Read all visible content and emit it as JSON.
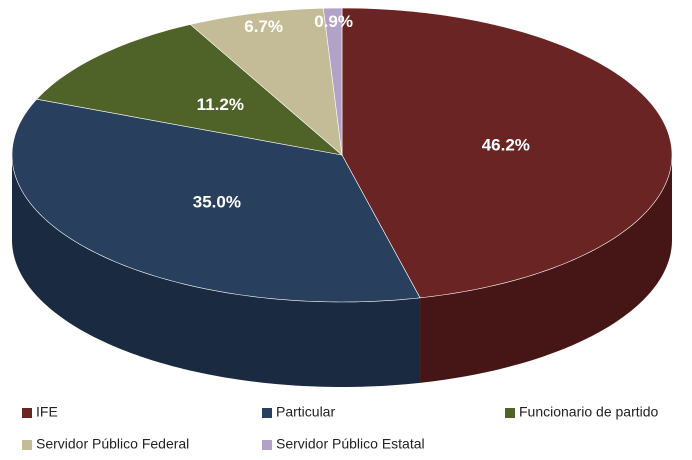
{
  "chart_data": {
    "type": "pie",
    "categories": [
      "IFE",
      "Particular",
      "Funcionario de partido",
      "Servidor Público Federal",
      "Servidor Público Estatal"
    ],
    "values": [
      46.2,
      35.0,
      11.2,
      6.7,
      0.9
    ],
    "value_labels": [
      "46.2%",
      "35.0%",
      "11.2%",
      "6.7%",
      "0.9%"
    ],
    "colors": [
      "#6b2424",
      "#283f5e",
      "#4f6228",
      "#c4bc96",
      "#b3a2c7"
    ],
    "side_colors": [
      "#461616",
      "#1a2a40",
      "#34421a",
      "#8f8968",
      "#7e7190"
    ],
    "legend": "bottom"
  }
}
